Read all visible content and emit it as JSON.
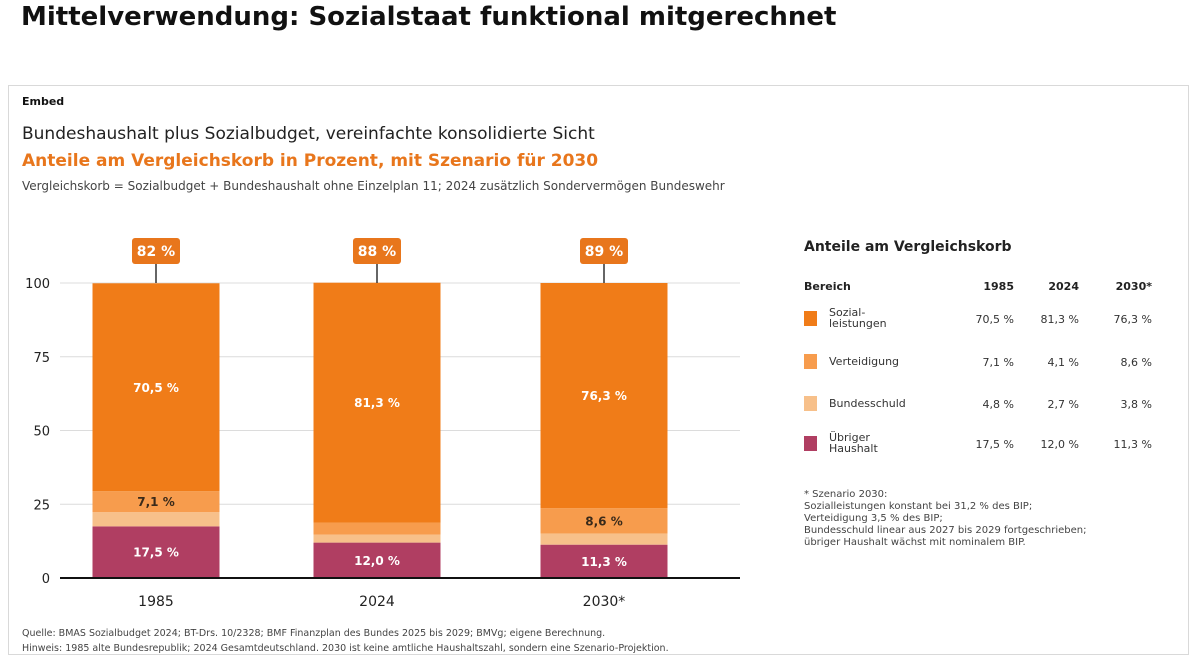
{
  "page": {
    "title": "Mittelverwendung: Sozialstaat funktional mitgerechnet"
  },
  "card": {
    "embed_label": "Embed",
    "subtitle": "Bundeshaushalt plus Sozialbudget, vereinfachte konsolidierte Sicht",
    "highlight": "Anteile am Vergleichskorb in Prozent, mit Szenario für 2030",
    "note": "Vergleichskorb = Sozialbudget + Bundeshaushalt ohne Einzelplan 11; 2024 zusätzlich Sondervermögen Bundeswehr",
    "source_line1": "Quelle: BMAS Sozialbudget 2024; BT-Drs. 10/2328; BMF Finanzplan des Bundes 2025 bis 2029; BMVg; eigene Berechnung.",
    "source_line2": "Hinweis: 1985 alte Bundesrepublik; 2024 Gesamtdeutschland. 2030 ist keine amtliche Haushaltszahl, sondern eine Szenario-Projektion."
  },
  "chart_data": {
    "type": "bar",
    "stacked": true,
    "categories": [
      "1985",
      "2024",
      "2030*"
    ],
    "ylim": [
      0,
      100
    ],
    "yticks": [
      0,
      25,
      50,
      75,
      100
    ],
    "grid": true,
    "series": [
      {
        "name": "Übriger Haushalt",
        "color": "#b03e62",
        "values": [
          17.5,
          12.0,
          11.3
        ],
        "labels": [
          "17,5 %",
          "12,0 %",
          "11,3 %"
        ]
      },
      {
        "name": "Bundesschuld",
        "color": "#f7c08a",
        "values": [
          4.8,
          2.7,
          3.8
        ],
        "labels": [
          "",
          "",
          ""
        ]
      },
      {
        "name": "Verteidigung",
        "color": "#f79c4d",
        "values": [
          7.1,
          4.1,
          8.6
        ],
        "labels": [
          "7,1 %",
          "",
          "8,6 %"
        ]
      },
      {
        "name": "Sozialleistungen",
        "color": "#f07c18",
        "values": [
          70.5,
          81.3,
          76.3
        ],
        "labels": [
          "70,5 %",
          "81,3 %",
          "76,3 %"
        ]
      }
    ],
    "callouts": [
      "82 %",
      "88 %",
      "89 %"
    ]
  },
  "legend": {
    "title": "Anteile am Vergleichskorb",
    "headers": [
      "Bereich",
      "1985",
      "2024",
      "2030*"
    ],
    "rows": [
      {
        "label": "Sozial-\nleistungen",
        "color": "#f07c18",
        "values": [
          "70,5 %",
          "81,3 %",
          "76,3 %"
        ]
      },
      {
        "label": "Verteidigung",
        "color": "#f79c4d",
        "values": [
          "7,1 %",
          "4,1 %",
          "8,6 %"
        ]
      },
      {
        "label": "Bundesschuld",
        "color": "#f7c08a",
        "values": [
          "4,8 %",
          "2,7 %",
          "3,8 %"
        ]
      },
      {
        "label": "Übriger\nHaushalt",
        "color": "#b03e62",
        "values": [
          "17,5 %",
          "12,0 %",
          "11,3 %"
        ]
      }
    ],
    "scenario_note": [
      "* Szenario 2030:",
      "Sozialleistungen konstant bei 31,2 % des BIP;",
      "Verteidigung 3,5 % des BIP;",
      "Bundesschuld linear aus 2027 bis 2029 fortgeschrieben;",
      "übriger Haushalt wächst mit nominalem BIP."
    ]
  }
}
